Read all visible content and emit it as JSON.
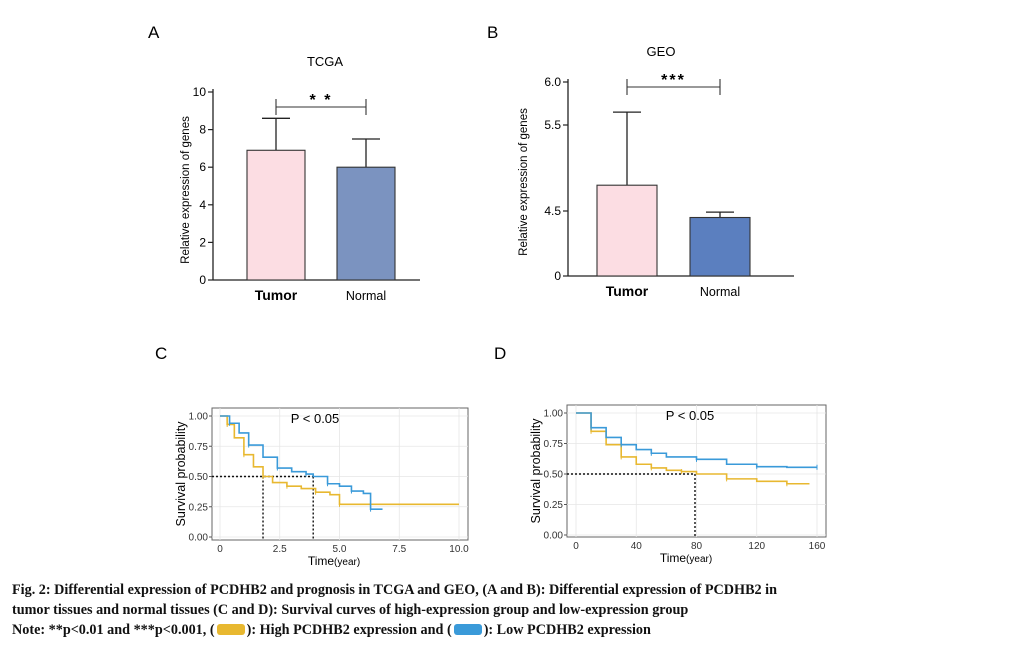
{
  "figure": {
    "caption_line1": "Fig. 2: Differential expression of PCDHB2 and prognosis in TCGA and GEO, (A and B): Differential expression of PCDHB2 in",
    "caption_line2": "tumor tissues and normal tissues (C and D): Survival curves of high-expression group and low-expression group",
    "note_prefix": "Note: **p<0.01 and ***p<0.001, (",
    "note_high": "): High PCDHB2 expression and (",
    "note_low": "): Low PCDHB2 expression",
    "colors": {
      "high": "#e8b830",
      "low": "#3a9ad9",
      "tumor": "#fcdde3",
      "normal_a": "#7b93c0",
      "normal_b": "#5b7fbf"
    }
  },
  "chart_data": [
    {
      "panel": "A",
      "type": "bar",
      "title": "TCGA",
      "ylabel": "Relative expression of genes",
      "ylim": [
        0,
        10
      ],
      "yticks": [
        "0",
        "2",
        "4",
        "6",
        "8",
        "10"
      ],
      "categories": [
        "Tumor",
        "Normal"
      ],
      "values": [
        6.9,
        6.0
      ],
      "errors": [
        1.7,
        1.5
      ],
      "significance": "* *"
    },
    {
      "panel": "B",
      "type": "bar",
      "title": "GEO",
      "ylabel": "Relative expression of genes",
      "ylim": [
        0,
        6.0
      ],
      "yticks": [
        "0",
        "4.5",
        "5.5",
        "6.0"
      ],
      "categories": [
        "Tumor",
        "Normal"
      ],
      "values": [
        4.8,
        4.05
      ],
      "errors": [
        0.85,
        0.37
      ],
      "significance": "***"
    },
    {
      "panel": "C",
      "type": "line",
      "annotation": "P < 0.05",
      "xlabel_main": "Time",
      "xlabel_unit": "(year)",
      "ylabel": "Survival probability",
      "xlim": [
        0,
        10
      ],
      "ylim": [
        0,
        1
      ],
      "xticks": [
        "0",
        "2.5",
        "5.0",
        "7.5",
        "10.0"
      ],
      "yticks": [
        "0.00",
        "0.25",
        "0.50",
        "0.75",
        "1.00"
      ],
      "median_times": [
        1.8,
        3.9
      ],
      "series": [
        {
          "name": "High PCDHB2 expression",
          "x": [
            0,
            0.3,
            0.6,
            1.0,
            1.4,
            1.8,
            2.2,
            2.8,
            3.4,
            4.0,
            4.6,
            5.0,
            10.0
          ],
          "y": [
            1.0,
            0.93,
            0.82,
            0.68,
            0.58,
            0.5,
            0.45,
            0.42,
            0.4,
            0.37,
            0.35,
            0.27,
            0.27
          ]
        },
        {
          "name": "Low PCDHB2 expression",
          "x": [
            0,
            0.4,
            0.8,
            1.2,
            1.8,
            2.4,
            3.0,
            3.6,
            3.9,
            4.5,
            5.0,
            5.5,
            6.0,
            6.3,
            6.8
          ],
          "y": [
            1.0,
            0.94,
            0.86,
            0.76,
            0.66,
            0.57,
            0.54,
            0.52,
            0.5,
            0.44,
            0.42,
            0.38,
            0.36,
            0.23,
            0.23
          ]
        }
      ]
    },
    {
      "panel": "D",
      "type": "line",
      "annotation": "P < 0.05",
      "xlabel_main": "Time",
      "xlabel_unit": "(year)",
      "ylabel": "Survival probability",
      "xlim": [
        0,
        160
      ],
      "ylim": [
        0,
        1
      ],
      "xticks": [
        "0",
        "40",
        "80",
        "120",
        "160"
      ],
      "yticks": [
        "0.00",
        "0.25",
        "0.50",
        "0.75",
        "1.00"
      ],
      "median_times": [
        79
      ],
      "series": [
        {
          "name": "High PCDHB2 expression",
          "x": [
            0,
            10,
            20,
            30,
            40,
            50,
            60,
            70,
            80,
            100,
            120,
            140,
            155
          ],
          "y": [
            1.0,
            0.85,
            0.74,
            0.64,
            0.58,
            0.55,
            0.53,
            0.52,
            0.5,
            0.46,
            0.44,
            0.42,
            0.42
          ]
        },
        {
          "name": "Low PCDHB2 expression",
          "x": [
            0,
            10,
            20,
            30,
            40,
            50,
            60,
            80,
            100,
            120,
            140,
            160
          ],
          "y": [
            1.0,
            0.88,
            0.8,
            0.74,
            0.7,
            0.67,
            0.64,
            0.62,
            0.58,
            0.56,
            0.555,
            0.555
          ]
        }
      ]
    }
  ]
}
